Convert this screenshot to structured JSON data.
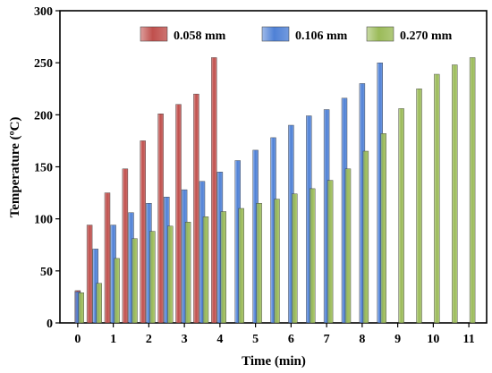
{
  "chart_data": {
    "type": "bar",
    "xlabel": "Time (min)",
    "ylabel": "Temperature (ºC)",
    "xlim": [
      -0.5,
      11.5
    ],
    "ylim": [
      0,
      300
    ],
    "x_ticks": [
      0,
      1,
      2,
      3,
      4,
      5,
      6,
      7,
      8,
      9,
      10,
      11
    ],
    "y_ticks": [
      0,
      50,
      100,
      150,
      200,
      250,
      300
    ],
    "grid": false,
    "legend_position": "top",
    "series": [
      {
        "name": "0.058 mm",
        "color": "#c0504d",
        "x": [
          0,
          0.333,
          0.833,
          1.333,
          1.833,
          2.333,
          2.833,
          3.333,
          3.833
        ],
        "values": [
          31,
          94,
          125,
          148,
          175,
          201,
          210,
          220,
          255
        ]
      },
      {
        "name": "0.106 mm",
        "color": "#4f81d6",
        "x": [
          0.0,
          0.5,
          1.0,
          1.5,
          2.0,
          2.5,
          3.0,
          3.5,
          4.0,
          4.5,
          5.0,
          5.5,
          6.0,
          6.5,
          7.0,
          7.5,
          8.0,
          8.5
        ],
        "values": [
          30,
          71,
          94,
          106,
          115,
          121,
          128,
          136,
          145,
          156,
          166,
          178,
          190,
          199,
          205,
          216,
          230,
          250
        ]
      },
      {
        "name": "0.270 mm",
        "color": "#9bbb59",
        "x": [
          0.1,
          0.6,
          1.1,
          1.6,
          2.1,
          2.6,
          3.1,
          3.6,
          4.1,
          4.6,
          5.1,
          5.6,
          6.1,
          6.6,
          7.1,
          7.6,
          8.1,
          8.6,
          9.1,
          9.6,
          10.1,
          10.6,
          11.1
        ],
        "values": [
          29,
          38,
          62,
          81,
          88,
          93,
          97,
          102,
          107,
          110,
          115,
          119,
          124,
          129,
          137,
          148,
          165,
          182,
          206,
          225,
          239,
          248,
          255
        ]
      }
    ]
  }
}
